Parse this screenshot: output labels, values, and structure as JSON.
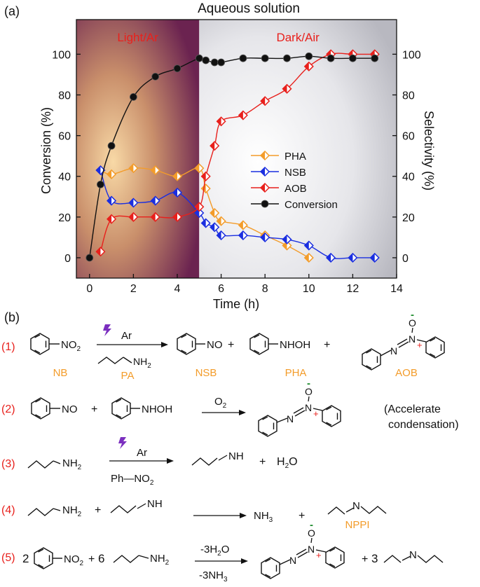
{
  "panel_a_label": "(a)",
  "panel_b_label": "(b)",
  "chart_data": {
    "type": "line",
    "title": "Aqueous solution",
    "xlabel": "Time (h)",
    "ylabel_left": "Conversion (%)",
    "ylabel_right": "Selectivity (%)",
    "xlim": [
      -0.6,
      14
    ],
    "ylim_left": [
      -10,
      117
    ],
    "ylim_right": [
      -10,
      117
    ],
    "xticks": [
      0,
      2,
      4,
      6,
      8,
      10,
      12,
      14
    ],
    "yticks_left": [
      0,
      20,
      40,
      60,
      80,
      100
    ],
    "yticks_right": [
      0,
      20,
      40,
      60,
      80,
      100
    ],
    "regions": [
      {
        "label": "Light/Ar",
        "x_from": -0.6,
        "x_to": 5
      },
      {
        "label": "Dark/Air",
        "x_from": 5,
        "x_to": 14
      }
    ],
    "series": [
      {
        "name": "PHA",
        "axis": "right",
        "color": "#f39c2a",
        "x": [
          0.5,
          1,
          2,
          3,
          4,
          5,
          5.3,
          5.7,
          6,
          7,
          8,
          9,
          10
        ],
        "y": [
          43,
          41,
          44,
          43,
          40,
          44,
          34,
          22,
          18,
          16,
          11,
          6,
          0
        ]
      },
      {
        "name": "NSB",
        "axis": "right",
        "color": "#1a2ee0",
        "x": [
          0.5,
          1,
          2,
          3,
          4,
          5,
          5.3,
          5.7,
          6,
          7,
          8,
          9,
          10,
          11,
          12,
          13
        ],
        "y": [
          43,
          28,
          27,
          28,
          32,
          22,
          17,
          15,
          11,
          11,
          10,
          9,
          6,
          0,
          0,
          0
        ]
      },
      {
        "name": "AOB",
        "axis": "right",
        "color": "#e8201c",
        "x": [
          0.5,
          1,
          2,
          3,
          4,
          5,
          5.3,
          5.7,
          6,
          7,
          8,
          9,
          10,
          11,
          12,
          13
        ],
        "y": [
          3,
          19,
          20,
          20,
          20,
          25,
          40,
          55,
          67,
          70,
          77,
          83,
          94,
          100,
          100,
          100
        ]
      },
      {
        "name": "Conversion",
        "axis": "left",
        "color": "#111111",
        "x": [
          0,
          0.5,
          1,
          2,
          3,
          4,
          5,
          5.3,
          5.7,
          6,
          7,
          8,
          9,
          10,
          11,
          12,
          13
        ],
        "y": [
          0,
          36,
          55,
          79,
          89,
          93,
          98,
          97,
          96,
          96,
          98,
          98,
          98,
          99,
          98,
          98,
          98
        ]
      }
    ]
  },
  "scheme": {
    "reactions": [
      {
        "number": "(1)",
        "reactant": "NB",
        "reagent": "PA",
        "condition": "Ar",
        "products": [
          "NSB",
          "PHA",
          "AOB"
        ]
      },
      {
        "number": "(2)",
        "condition": "O",
        "condition_sub": "2",
        "note_line1": "(Accelerate",
        "note_line2": "condensation)"
      },
      {
        "number": "(3)",
        "condition": "Ar",
        "below_arrow": "Ph—NO",
        "below_arrow_sub": "2",
        "product_water": "H",
        "water_sub": "2",
        "water_tail": "O"
      },
      {
        "number": "(4)",
        "ammonia": "NH",
        "ammonia_sub": "3",
        "product_name": "NPPI"
      },
      {
        "number": "(5)",
        "coef_nitro": "2",
        "coef_amine": "6",
        "coef_imine": "3",
        "above_arrow": "-3H",
        "above_sub": "2",
        "above_tail": "O",
        "below_arrow": "-3NH",
        "below_sub": "3"
      }
    ],
    "plus": "+",
    "groups": {
      "no2": "NO",
      "no2_sub": "2",
      "no": "NO",
      "nhoh": "NHOH",
      "nh2": "NH",
      "nh2_sub": "2",
      "nh": "NH",
      "n": "N",
      "o": "O",
      "minus": "-",
      "plus_charge": "+"
    },
    "colors": {
      "number": "#e8201c",
      "label": "#f39c2a",
      "charge_minus": "#1a8a2a",
      "charge_plus": "#e8201c",
      "bolt": "#7b2fbf"
    }
  }
}
